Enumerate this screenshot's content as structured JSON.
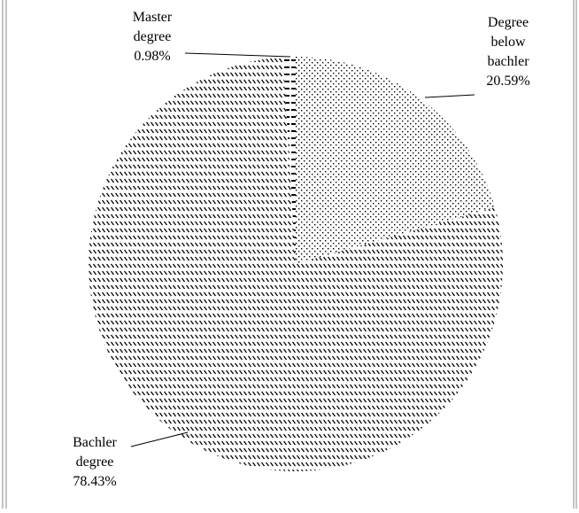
{
  "chart_data": {
    "type": "pie",
    "title": "",
    "legend": "none",
    "slices": [
      {
        "label_lines": [
          "Master",
          "degree"
        ],
        "percent_label": "0.98%",
        "value": 0.98,
        "pattern": "horizontal-dashes"
      },
      {
        "label_lines": [
          "Degree",
          "below",
          "bachler"
        ],
        "percent_label": "20.59%",
        "value": 20.59,
        "pattern": "dots"
      },
      {
        "label_lines": [
          "Bachler",
          "degree"
        ],
        "percent_label": "78.43%",
        "value": 78.43,
        "pattern": "diagonal-stripes"
      }
    ]
  }
}
